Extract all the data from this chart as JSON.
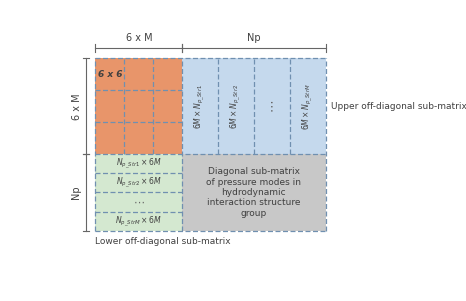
{
  "orange_color": "#E8956A",
  "blue_color": "#C5D9ED",
  "green_color": "#D4E8D0",
  "gray_color": "#C8C8C8",
  "dashed_color": "#7090B0",
  "border_color": "#6090B0",
  "text_color": "#404040",
  "label_6xM_top": "6 x M",
  "label_Np_top": "Np",
  "label_6xM_side": "6 x M",
  "label_Np_side": "Np",
  "upper_offdiag_label": "Upper off-diagonal sub-matrix",
  "lower_offdiag_label": "Lower off-diagonal sub-matrix",
  "diagonal_label": "Diagonal sub-matrix\nof pressure modes in\nhydrodynamic\ninteraction structure\ngroup",
  "cell_6x6": "6 x 6"
}
